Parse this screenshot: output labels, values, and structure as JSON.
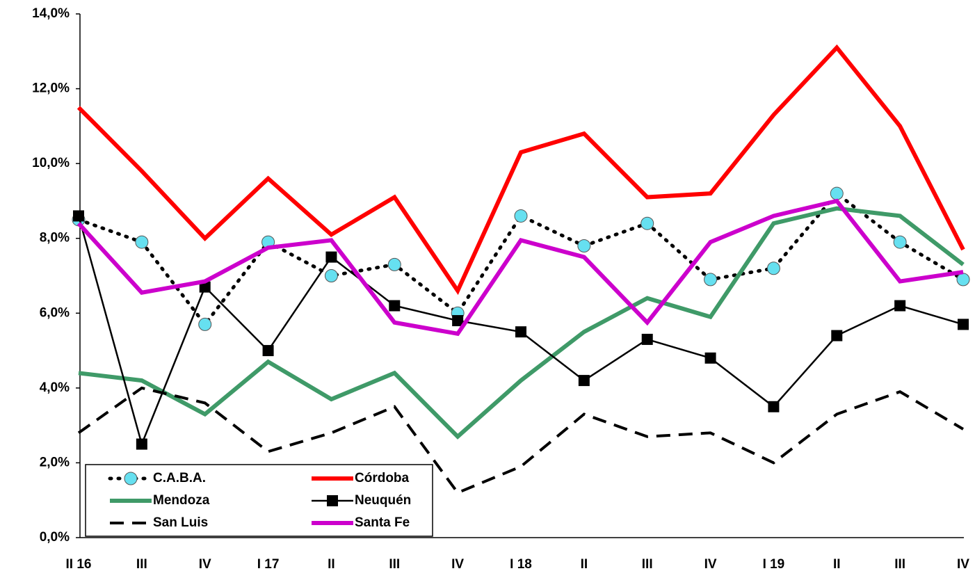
{
  "chart_data": {
    "type": "line",
    "categories": [
      "II 16",
      "III",
      "IV",
      "I 17",
      "II",
      "III",
      "IV",
      "I 18",
      "II",
      "III",
      "IV",
      "I 19",
      "II",
      "III",
      "IV"
    ],
    "ylim": [
      0,
      14
    ],
    "yticks": [
      {
        "value": 0,
        "label": "0,0%"
      },
      {
        "value": 2,
        "label": "2,0%"
      },
      {
        "value": 4,
        "label": "4,0%"
      },
      {
        "value": 6,
        "label": "6,0%"
      },
      {
        "value": 8,
        "label": "8,0%"
      },
      {
        "value": 10,
        "label": "10,0%"
      },
      {
        "value": 12,
        "label": "12,0%"
      },
      {
        "value": 14,
        "label": "14,0%"
      }
    ],
    "grid": false,
    "legend": "bottom-left",
    "series": [
      {
        "name": "C.A.B.A.",
        "color": "#000000",
        "marker_color": "#66e0f0",
        "line_style": "dotted",
        "marker": "circle",
        "width": 5,
        "values": [
          8.5,
          7.9,
          5.7,
          7.9,
          7.0,
          7.3,
          6.0,
          8.6,
          7.8,
          8.4,
          6.9,
          7.2,
          9.2,
          7.9,
          6.9
        ]
      },
      {
        "name": "Córdoba",
        "color": "#ff0000",
        "line_style": "solid",
        "marker": "none",
        "width": 6,
        "values": [
          11.5,
          9.8,
          8.0,
          9.6,
          8.1,
          9.1,
          6.6,
          10.3,
          10.8,
          9.1,
          9.2,
          11.3,
          13.1,
          11.0,
          7.7
        ]
      },
      {
        "name": "Mendoza",
        "color": "#3f9a68",
        "line_style": "solid",
        "marker": "none",
        "width": 6,
        "values": [
          4.4,
          4.2,
          3.3,
          4.7,
          3.7,
          4.4,
          2.7,
          4.2,
          5.5,
          6.4,
          5.9,
          8.4,
          8.8,
          8.6,
          7.3
        ]
      },
      {
        "name": "Neuquén",
        "color": "#000000",
        "line_style": "solid",
        "marker": "square",
        "width": 2.5,
        "values": [
          8.6,
          2.5,
          6.7,
          5.0,
          7.5,
          6.2,
          5.8,
          5.5,
          4.2,
          5.3,
          4.8,
          3.5,
          5.4,
          6.2,
          5.7
        ]
      },
      {
        "name": "San Luis",
        "color": "#000000",
        "line_style": "dashed",
        "marker": "none",
        "width": 4,
        "values": [
          2.8,
          4.0,
          3.6,
          2.3,
          2.8,
          3.5,
          1.2,
          1.9,
          3.3,
          2.7,
          2.8,
          2.0,
          3.3,
          3.9,
          2.9
        ]
      },
      {
        "name": "Santa Fe",
        "color": "#cc00cc",
        "line_style": "solid",
        "marker": "none",
        "width": 6,
        "values": [
          8.4,
          6.55,
          6.85,
          7.75,
          7.95,
          5.75,
          5.45,
          7.95,
          7.5,
          5.75,
          7.9,
          8.6,
          9.0,
          6.85,
          7.1
        ]
      }
    ]
  }
}
